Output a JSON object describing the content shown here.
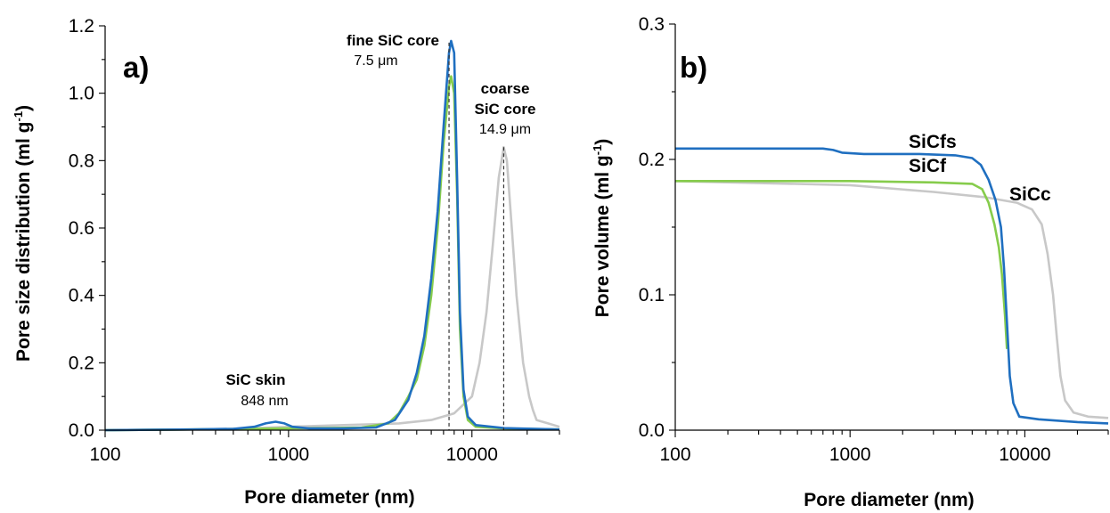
{
  "colors": {
    "SiCfs": "#1f6fc0",
    "SiCf": "#86cc4c",
    "SiCc": "#c8c8c8"
  },
  "chart_data": [
    {
      "panel": "a)",
      "type": "line",
      "xscale": "log",
      "xlim": [
        100,
        30000
      ],
      "ylim": [
        0,
        1.2
      ],
      "xlabel": "Pore diameter (nm)",
      "ylabel": "Pore size distribution (ml g",
      "ylabel_sup": "-1",
      "ylabel_end": ")",
      "xticks": [
        "100",
        "1000",
        "10000"
      ],
      "yticks": [
        "0.0",
        "0.2",
        "0.4",
        "0.6",
        "0.8",
        "1.0",
        "1.2"
      ],
      "series": [
        {
          "key": "SiCc",
          "points": [
            [
              100,
              0
            ],
            [
              300,
              0.002
            ],
            [
              600,
              0.005
            ],
            [
              1000,
              0.01
            ],
            [
              2000,
              0.015
            ],
            [
              4000,
              0.02
            ],
            [
              6000,
              0.03
            ],
            [
              8000,
              0.05
            ],
            [
              10000,
              0.1
            ],
            [
              11000,
              0.2
            ],
            [
              12000,
              0.35
            ],
            [
              13000,
              0.55
            ],
            [
              14000,
              0.75
            ],
            [
              14900,
              0.84
            ],
            [
              15500,
              0.8
            ],
            [
              16500,
              0.6
            ],
            [
              17500,
              0.4
            ],
            [
              19000,
              0.2
            ],
            [
              20500,
              0.1
            ],
            [
              21500,
              0.06
            ],
            [
              22500,
              0.03
            ],
            [
              26000,
              0.02
            ],
            [
              30000,
              0.01
            ]
          ]
        },
        {
          "key": "SiCf",
          "points": [
            [
              100,
              0
            ],
            [
              300,
              0.002
            ],
            [
              600,
              0.004
            ],
            [
              900,
              0.005
            ],
            [
              1500,
              0.006
            ],
            [
              2500,
              0.008
            ],
            [
              3500,
              0.02
            ],
            [
              4000,
              0.05
            ],
            [
              4500,
              0.1
            ],
            [
              5000,
              0.15
            ],
            [
              5500,
              0.25
            ],
            [
              6000,
              0.4
            ],
            [
              6500,
              0.6
            ],
            [
              7000,
              0.85
            ],
            [
              7500,
              1.02
            ],
            [
              7700,
              1.05
            ],
            [
              8000,
              1.0
            ],
            [
              8300,
              0.7
            ],
            [
              8600,
              0.3
            ],
            [
              9000,
              0.1
            ],
            [
              9500,
              0.03
            ],
            [
              10500,
              0.01
            ],
            [
              15000,
              0.005
            ],
            [
              30000,
              0.002
            ]
          ]
        },
        {
          "key": "SiCfs",
          "points": [
            [
              100,
              0
            ],
            [
              300,
              0.002
            ],
            [
              500,
              0.004
            ],
            [
              650,
              0.01
            ],
            [
              750,
              0.02
            ],
            [
              850,
              0.025
            ],
            [
              950,
              0.02
            ],
            [
              1050,
              0.01
            ],
            [
              1300,
              0.005
            ],
            [
              2000,
              0.005
            ],
            [
              3000,
              0.008
            ],
            [
              3800,
              0.03
            ],
            [
              4500,
              0.09
            ],
            [
              5000,
              0.17
            ],
            [
              5500,
              0.28
            ],
            [
              6000,
              0.45
            ],
            [
              6500,
              0.65
            ],
            [
              7000,
              0.9
            ],
            [
              7500,
              1.12
            ],
            [
              7700,
              1.155
            ],
            [
              8000,
              1.12
            ],
            [
              8300,
              0.75
            ],
            [
              8600,
              0.35
            ],
            [
              9000,
              0.12
            ],
            [
              9500,
              0.04
            ],
            [
              10500,
              0.015
            ],
            [
              15000,
              0.006
            ],
            [
              30000,
              0.002
            ]
          ]
        }
      ],
      "markers": [
        {
          "x": 7500,
          "y_top": 1.15,
          "label_bold": "fine SiC core",
          "label_value": "7.5 μm"
        },
        {
          "x": 14900,
          "y_top": 0.84,
          "label_bold_1": "coarse",
          "label_bold_2": "SiC core",
          "label_value": "14.9 μm"
        }
      ],
      "annotations": [
        {
          "x": 848,
          "label_bold": "SiC skin",
          "label_value": "848 nm"
        }
      ]
    },
    {
      "panel": "b)",
      "type": "line",
      "xscale": "log",
      "xlim": [
        100,
        30000
      ],
      "ylim": [
        0,
        0.3
      ],
      "xlabel": "Pore diameter (nm)",
      "ylabel": "Pore volume (ml g",
      "ylabel_sup": "-1",
      "ylabel_end": ")",
      "xticks": [
        "100",
        "1000",
        "10000"
      ],
      "yticks": [
        "0.0",
        "0.1",
        "0.2",
        "0.3"
      ],
      "series": [
        {
          "key": "SiCc",
          "label": "SiCc",
          "points": [
            [
              100,
              0.184
            ],
            [
              1000,
              0.181
            ],
            [
              3000,
              0.176
            ],
            [
              6000,
              0.172
            ],
            [
              9000,
              0.168
            ],
            [
              11000,
              0.163
            ],
            [
              12500,
              0.152
            ],
            [
              13500,
              0.13
            ],
            [
              14500,
              0.1
            ],
            [
              15200,
              0.07
            ],
            [
              16000,
              0.04
            ],
            [
              17000,
              0.022
            ],
            [
              19000,
              0.013
            ],
            [
              23000,
              0.01
            ],
            [
              30000,
              0.009
            ]
          ]
        },
        {
          "key": "SiCf",
          "label": "SiCf",
          "points": [
            [
              100,
              0.184
            ],
            [
              1000,
              0.184
            ],
            [
              3000,
              0.183
            ],
            [
              5000,
              0.182
            ],
            [
              5700,
              0.178
            ],
            [
              6200,
              0.168
            ],
            [
              6700,
              0.152
            ],
            [
              7100,
              0.135
            ],
            [
              7400,
              0.115
            ],
            [
              7700,
              0.085
            ],
            [
              7900,
              0.06
            ]
          ]
        },
        {
          "key": "SiCfs",
          "label": "SiCfs",
          "points": [
            [
              100,
              0.208
            ],
            [
              700,
              0.208
            ],
            [
              800,
              0.207
            ],
            [
              900,
              0.205
            ],
            [
              1200,
              0.204
            ],
            [
              2500,
              0.204
            ],
            [
              4000,
              0.203
            ],
            [
              5000,
              0.201
            ],
            [
              5600,
              0.196
            ],
            [
              6200,
              0.185
            ],
            [
              6800,
              0.17
            ],
            [
              7300,
              0.15
            ],
            [
              7600,
              0.12
            ],
            [
              7900,
              0.08
            ],
            [
              8200,
              0.04
            ],
            [
              8600,
              0.02
            ],
            [
              9300,
              0.01
            ],
            [
              12000,
              0.008
            ],
            [
              20000,
              0.006
            ],
            [
              30000,
              0.005
            ]
          ]
        }
      ]
    }
  ]
}
